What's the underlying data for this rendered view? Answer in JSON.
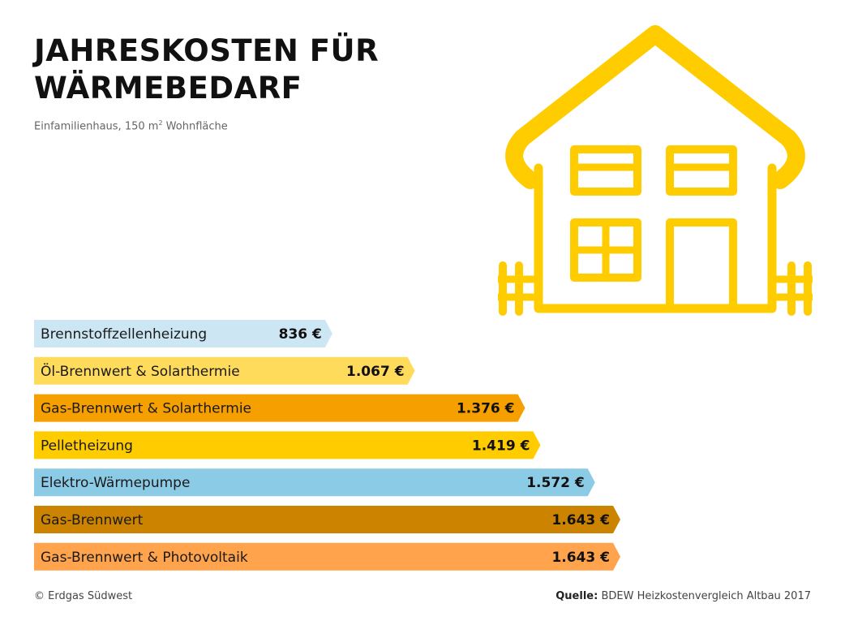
{
  "title_line1": "JAHRESKOSTEN FÜR",
  "title_line2": "WÄRMEBEDARF",
  "subtitle_prefix": "Einfamilienhaus, 150 m",
  "subtitle_sup": "2",
  "subtitle_suffix": " Wohnfläche",
  "footer": {
    "copyright": "© Erdgas Südwest",
    "source_label": "Quelle:",
    "source_text": " BDEW Heizkostenvergleich Altbau 2017"
  },
  "icons": {
    "illustration": "house-icon"
  },
  "chart_data": {
    "type": "bar",
    "orientation": "horizontal",
    "title": "JAHRESKOSTEN FÜR WÄRMEBEDARF",
    "subtitle": "Einfamilienhaus, 150 m² Wohnfläche",
    "unit": "€",
    "categories": [
      "Brennstoffzellenheizung",
      "Öl-Brennwert & Solarthermie",
      "Gas-Brennwert & Solarthermie",
      "Pelletheizung",
      "Elektro-Wärmepumpe",
      "Gas-Brennwert",
      "Gas-Brennwert & Photovoltaik"
    ],
    "values": [
      836,
      1067,
      1376,
      1419,
      1572,
      1643,
      1643
    ],
    "value_labels": [
      "836 €",
      "1.067 €",
      "1.376 €",
      "1.419 €",
      "1.572 €",
      "1.643 €",
      "1.643 €"
    ],
    "colors": [
      "#cde6f4",
      "#ffdb5c",
      "#f5a000",
      "#ffcc00",
      "#8ccbe6",
      "#cc8400",
      "#ffa34d"
    ],
    "grid": false,
    "legend": "none"
  }
}
